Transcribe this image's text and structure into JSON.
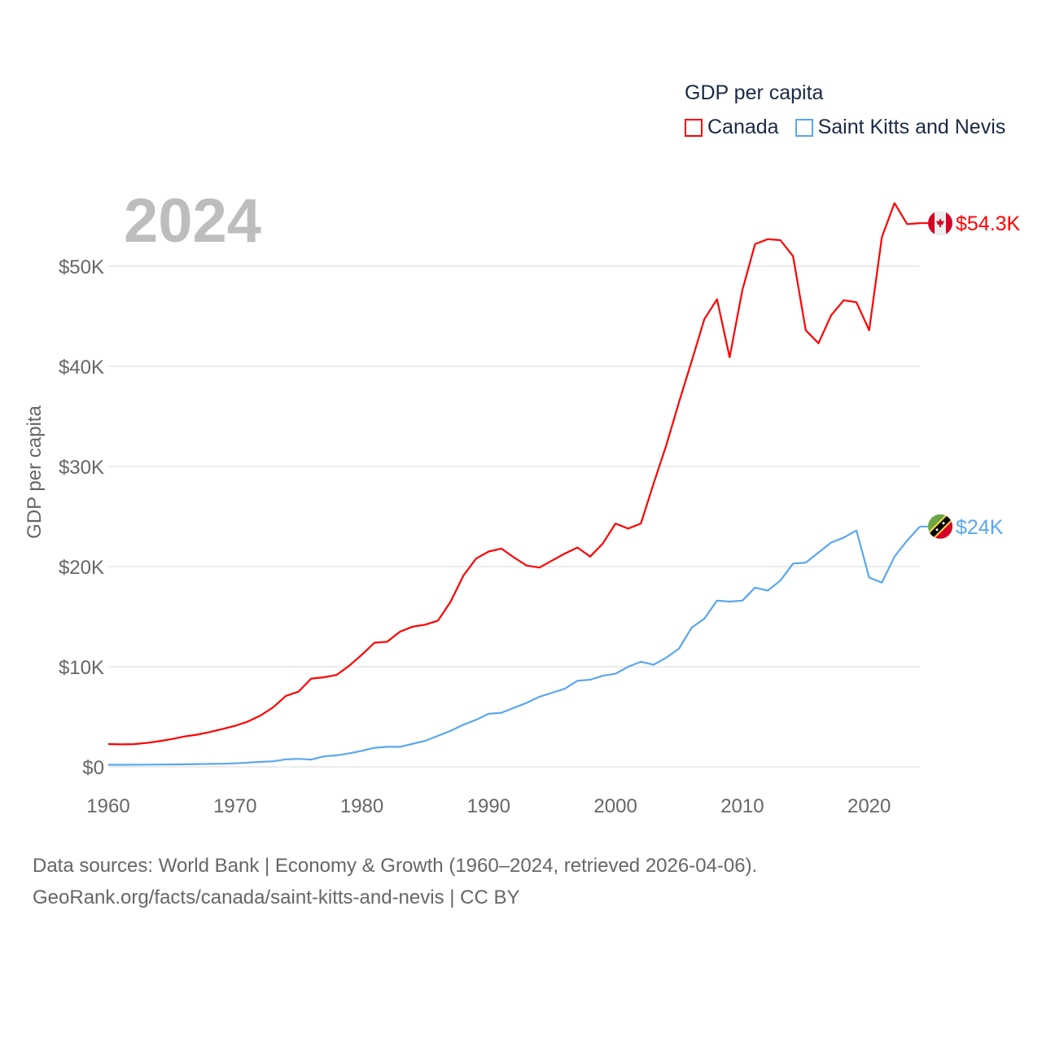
{
  "legend": {
    "title": "GDP per capita",
    "items": [
      {
        "name": "Canada",
        "color": "#ff0000"
      },
      {
        "name": "Saint Kitts and Nevis",
        "color": "#5aa7ef"
      }
    ]
  },
  "year_label": "2024",
  "footer": {
    "line1": "Data sources: World Bank | Economy & Growth (1960–2024, retrieved 2026-04-06).",
    "line2": "GeoRank.org/facts/canada/saint-kitts-and-nevis | CC BY"
  },
  "chart_data": {
    "type": "line",
    "title": "GDP per capita",
    "xlabel": "",
    "ylabel": "GDP per capita",
    "xlim": [
      1960,
      2024
    ],
    "ylim": [
      0,
      50000
    ],
    "grid": true,
    "legend_position": "top-right",
    "x_ticks": [
      1960,
      1970,
      1980,
      1990,
      2000,
      2010,
      2020
    ],
    "y_ticks": [
      {
        "value": 0,
        "label": "$0"
      },
      {
        "value": 10000,
        "label": "$10K"
      },
      {
        "value": 20000,
        "label": "$20K"
      },
      {
        "value": 30000,
        "label": "$30K"
      },
      {
        "value": 40000,
        "label": "$40K"
      },
      {
        "value": 50000,
        "label": "$50K"
      }
    ],
    "x_start": 1960,
    "series": [
      {
        "name": "Canada",
        "color": "#ff0000",
        "end_label": "$54.3K",
        "flag": "canada-flag",
        "values": [
          2.28,
          2.24,
          2.27,
          2.38,
          2.56,
          2.77,
          3.03,
          3.21,
          3.47,
          3.77,
          4.1,
          4.52,
          5.12,
          5.94,
          7.08,
          7.51,
          8.81,
          8.94,
          9.18,
          10.1,
          11.2,
          12.4,
          12.5,
          13.5,
          14.0,
          14.2,
          14.6,
          16.5,
          19.1,
          20.8,
          21.5,
          21.8,
          20.9,
          20.1,
          19.9,
          20.6,
          21.3,
          21.9,
          21.0,
          22.3,
          24.3,
          23.8,
          24.3,
          28.3,
          32.1,
          36.4,
          40.5,
          44.7,
          46.7,
          40.9,
          47.6,
          52.2,
          52.7,
          52.6,
          51.0,
          43.6,
          42.3,
          45.1,
          46.6,
          46.4,
          43.6,
          52.9,
          56.3,
          54.2,
          54.3
        ]
      },
      {
        "name": "Saint Kitts and Nevis",
        "color": "#5aa7ef",
        "end_label": "$24K",
        "flag": "saint-kitts-and-nevis-flag",
        "values": [
          0.2,
          0.2,
          0.21,
          0.22,
          0.23,
          0.24,
          0.25,
          0.28,
          0.29,
          0.31,
          0.35,
          0.42,
          0.5,
          0.55,
          0.75,
          0.8,
          0.72,
          1.05,
          1.15,
          1.35,
          1.6,
          1.9,
          2.0,
          2.0,
          2.3,
          2.6,
          3.1,
          3.6,
          4.2,
          4.7,
          5.3,
          5.4,
          5.9,
          6.4,
          7.0,
          7.4,
          7.8,
          8.6,
          8.7,
          9.1,
          9.3,
          10.0,
          10.5,
          10.2,
          10.9,
          11.8,
          13.9,
          14.8,
          16.6,
          16.5,
          16.6,
          17.9,
          17.6,
          18.6,
          20.3,
          20.4,
          21.4,
          22.4,
          22.9,
          23.6,
          18.9,
          18.4,
          21.0,
          22.6,
          24.0
        ]
      }
    ],
    "value_unit": "thousand USD"
  }
}
